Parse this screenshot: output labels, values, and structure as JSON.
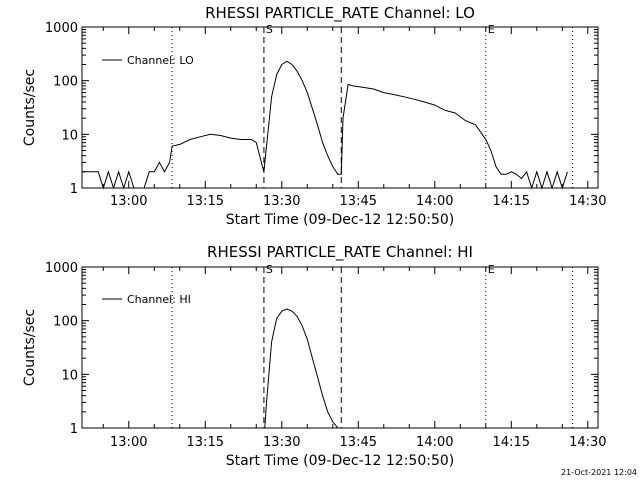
{
  "chart_data": [
    {
      "type": "line",
      "title": "RHESSI PARTICLE_RATE Channel: LO",
      "xlabel": "Start Time (09-Dec-12 12:50:50)",
      "ylabel": "Counts/sec",
      "yscale": "log",
      "ylim": [
        1,
        1000
      ],
      "xlim": [
        "12:50:50",
        "14:32"
      ],
      "x_ticks": [
        "13:00",
        "13:15",
        "13:30",
        "13:45",
        "14:00",
        "14:15",
        "14:30"
      ],
      "y_ticks": [
        "1",
        "10",
        "100",
        "1000"
      ],
      "legend": {
        "placement": "top-left",
        "entries": [
          "Channel: LO"
        ]
      },
      "markers": [
        {
          "label": "S",
          "time": "13:26:30",
          "style": "dashed"
        },
        {
          "label": "",
          "time": "13:41:40",
          "style": "dashed"
        },
        {
          "label": "",
          "time": "13:08:30",
          "style": "dotted"
        },
        {
          "label": "E",
          "time": "14:10:00",
          "style": "dotted"
        },
        {
          "label": "",
          "time": "14:27:00",
          "style": "dotted"
        }
      ],
      "series": [
        {
          "name": "Channel: LO",
          "x": [
            "12:50:50",
            "12:54",
            "12:55",
            "12:56",
            "12:57",
            "12:58",
            "12:59",
            "13:00",
            "13:01",
            "13:02",
            "13:03",
            "13:04",
            "13:05",
            "13:06",
            "13:07",
            "13:08",
            "13:08:30",
            "13:10",
            "13:12",
            "13:14",
            "13:16",
            "13:18",
            "13:20",
            "13:22",
            "13:24",
            "13:25",
            "13:26",
            "13:26:30",
            "13:27",
            "13:28",
            "13:29",
            "13:30",
            "13:31",
            "13:32",
            "13:33",
            "13:34",
            "13:35",
            "13:36",
            "13:37",
            "13:38",
            "13:39",
            "13:40",
            "13:41",
            "13:41:40",
            "13:42",
            "13:43",
            "13:44",
            "13:46",
            "13:48",
            "13:50",
            "13:52",
            "13:54",
            "13:56",
            "13:58",
            "14:00",
            "14:02",
            "14:04",
            "14:06",
            "14:08",
            "14:10",
            "14:11",
            "14:12",
            "14:13",
            "14:14",
            "14:15",
            "14:16",
            "14:17",
            "14:18",
            "14:19",
            "14:20",
            "14:21",
            "14:22",
            "14:23",
            "14:24",
            "14:25",
            "14:26"
          ],
          "y": [
            2,
            2,
            1,
            2,
            1,
            2,
            1,
            2,
            1,
            1,
            1,
            2,
            2,
            3,
            2,
            3,
            6,
            6.5,
            8,
            9,
            10,
            9.5,
            8.5,
            8,
            8,
            7,
            3,
            2,
            6,
            50,
            130,
            200,
            230,
            200,
            150,
            100,
            60,
            30,
            15,
            7,
            4,
            2.5,
            1.8,
            1.8,
            20,
            85,
            80,
            75,
            70,
            60,
            55,
            50,
            45,
            40,
            35,
            28,
            25,
            18,
            15,
            8,
            5,
            2.5,
            1.8,
            1.8,
            2,
            1.8,
            1.5,
            2,
            1,
            2,
            1,
            2,
            1,
            2,
            1,
            2
          ]
        }
      ]
    },
    {
      "type": "line",
      "title": "RHESSI PARTICLE_RATE Channel: HI",
      "xlabel": "Start Time (09-Dec-12 12:50:50)",
      "ylabel": "Counts/sec",
      "yscale": "log",
      "ylim": [
        1,
        1000
      ],
      "xlim": [
        "12:50:50",
        "14:32"
      ],
      "x_ticks": [
        "13:00",
        "13:15",
        "13:30",
        "13:45",
        "14:00",
        "14:15",
        "14:30"
      ],
      "y_ticks": [
        "1",
        "10",
        "100",
        "1000"
      ],
      "legend": {
        "placement": "top-left",
        "entries": [
          "Channel: HI"
        ]
      },
      "markers": [
        {
          "label": "S",
          "time": "13:26:30",
          "style": "dashed"
        },
        {
          "label": "",
          "time": "13:41:40",
          "style": "dashed"
        },
        {
          "label": "",
          "time": "13:08:30",
          "style": "dotted"
        },
        {
          "label": "E",
          "time": "14:10:00",
          "style": "dotted"
        },
        {
          "label": "",
          "time": "14:27:00",
          "style": "dotted"
        }
      ],
      "series": [
        {
          "name": "Channel: HI",
          "x": [
            "13:26:40",
            "13:27",
            "13:28",
            "13:29",
            "13:30",
            "13:31",
            "13:32",
            "13:33",
            "13:34",
            "13:35",
            "13:36",
            "13:37",
            "13:38",
            "13:39",
            "13:40",
            "13:41"
          ],
          "y": [
            1,
            3,
            40,
            110,
            150,
            165,
            150,
            120,
            80,
            45,
            20,
            9,
            4,
            2,
            1.3,
            1
          ]
        }
      ]
    }
  ],
  "timestamp": "21-Oct-2021 12:04"
}
